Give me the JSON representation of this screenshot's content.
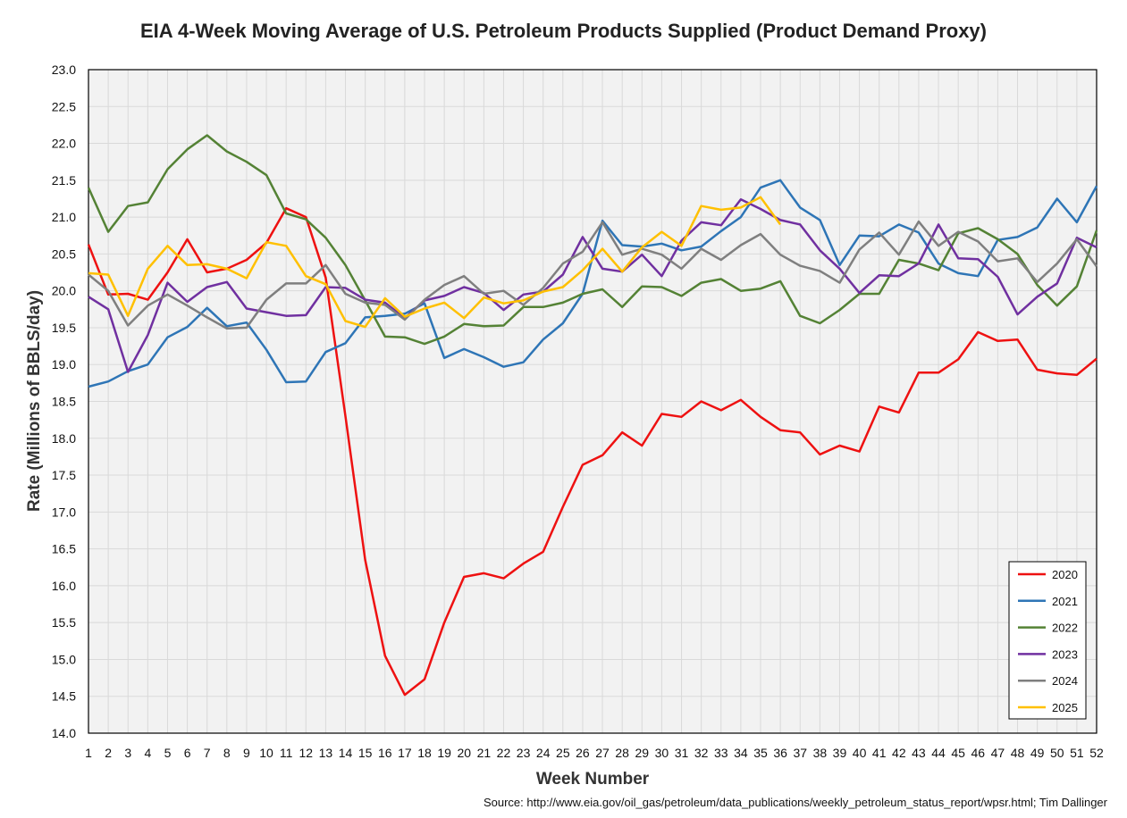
{
  "chart_data": {
    "type": "line",
    "title": "EIA 4-Week Moving Average of U.S. Petroleum Products Supplied (Product Demand Proxy)",
    "xlabel": "Week Number",
    "ylabel": "Rate (Millions of BBLS/day)",
    "source": "Source: http://www.eia.gov/oil_gas/petroleum/data_publications/weekly_petroleum_status_report/wpsr.html; Tim Dallinger",
    "xlim": [
      1,
      52
    ],
    "ylim": [
      14.0,
      23.0
    ],
    "yticks": [
      "14.0",
      "14.5",
      "15.0",
      "15.5",
      "16.0",
      "16.5",
      "17.0",
      "17.5",
      "18.0",
      "18.5",
      "19.0",
      "19.5",
      "20.0",
      "20.5",
      "21.0",
      "21.5",
      "22.0",
      "22.5",
      "23.0"
    ],
    "x": [
      1,
      2,
      3,
      4,
      5,
      6,
      7,
      8,
      9,
      10,
      11,
      12,
      13,
      14,
      15,
      16,
      17,
      18,
      19,
      20,
      21,
      22,
      23,
      24,
      25,
      26,
      27,
      28,
      29,
      30,
      31,
      32,
      33,
      34,
      35,
      36,
      37,
      38,
      39,
      40,
      41,
      42,
      43,
      44,
      45,
      46,
      47,
      48,
      49,
      50,
      51,
      52
    ],
    "grid": true,
    "legend_position": "bottom-right",
    "series": [
      {
        "name": "2020",
        "color": "#ee1111",
        "values": [
          20.63,
          19.95,
          19.96,
          19.88,
          20.25,
          20.7,
          20.25,
          20.3,
          20.42,
          20.65,
          21.12,
          21.0,
          20.18,
          18.3,
          16.35,
          15.05,
          14.52,
          14.73,
          15.5,
          16.12,
          16.17,
          16.1,
          16.3,
          16.46,
          17.07,
          17.64,
          17.77,
          18.08,
          17.9,
          18.33,
          18.29,
          18.5,
          18.38,
          18.52,
          18.29,
          18.11,
          18.08,
          17.78,
          17.9,
          17.82,
          18.43,
          18.35,
          18.89,
          18.89,
          19.07,
          19.44,
          19.32,
          19.34,
          18.93,
          18.88,
          18.86,
          19.08
        ]
      },
      {
        "name": "2021",
        "color": "#2e75b6",
        "values": [
          18.7,
          18.77,
          18.91,
          19.0,
          19.37,
          19.51,
          19.77,
          19.52,
          19.57,
          19.2,
          18.76,
          18.77,
          19.17,
          19.29,
          19.64,
          19.66,
          19.69,
          19.83,
          19.09,
          19.21,
          19.1,
          18.97,
          19.03,
          19.34,
          19.56,
          19.96,
          20.95,
          20.62,
          20.6,
          20.64,
          20.55,
          20.6,
          20.81,
          21.0,
          21.4,
          21.5,
          21.13,
          20.96,
          20.35,
          20.75,
          20.74,
          20.9,
          20.79,
          20.37,
          20.24,
          20.2,
          20.69,
          20.73,
          20.86,
          21.25,
          20.93,
          21.42
        ]
      },
      {
        "name": "2022",
        "color": "#548235",
        "values": [
          21.4,
          20.8,
          21.15,
          21.2,
          21.65,
          21.92,
          22.11,
          21.89,
          21.75,
          21.57,
          21.05,
          20.97,
          20.72,
          20.35,
          19.87,
          19.38,
          19.37,
          19.28,
          19.38,
          19.55,
          19.52,
          19.53,
          19.78,
          19.78,
          19.84,
          19.96,
          20.02,
          19.78,
          20.06,
          20.05,
          19.93,
          20.11,
          20.16,
          20.0,
          20.03,
          20.13,
          19.66,
          19.56,
          19.74,
          19.96,
          19.96,
          20.42,
          20.37,
          20.28,
          20.78,
          20.85,
          20.7,
          20.5,
          20.08,
          19.8,
          20.06,
          20.82
        ]
      },
      {
        "name": "2023",
        "color": "#7030a0",
        "values": [
          19.92,
          19.75,
          18.9,
          19.4,
          20.11,
          19.85,
          20.05,
          20.12,
          19.76,
          19.71,
          19.66,
          19.67,
          20.05,
          20.04,
          19.88,
          19.84,
          19.63,
          19.87,
          19.93,
          20.05,
          19.97,
          19.74,
          19.95,
          19.99,
          20.22,
          20.73,
          20.3,
          20.26,
          20.49,
          20.2,
          20.68,
          20.93,
          20.89,
          21.24,
          21.11,
          20.96,
          20.9,
          20.55,
          20.3,
          19.97,
          20.21,
          20.2,
          20.37,
          20.9,
          20.44,
          20.43,
          20.19,
          19.68,
          19.92,
          20.1,
          20.72,
          20.59
        ]
      },
      {
        "name": "2024",
        "color": "#7f7f7f",
        "values": [
          20.22,
          20.0,
          19.53,
          19.8,
          19.95,
          19.8,
          19.64,
          19.49,
          19.5,
          19.88,
          20.1,
          20.1,
          20.35,
          19.96,
          19.84,
          19.81,
          19.61,
          19.88,
          20.08,
          20.2,
          19.96,
          20.0,
          19.81,
          20.04,
          20.37,
          20.53,
          20.93,
          20.49,
          20.57,
          20.49,
          20.3,
          20.57,
          20.42,
          20.62,
          20.77,
          20.49,
          20.34,
          20.27,
          20.11,
          20.56,
          20.79,
          20.49,
          20.94,
          20.61,
          20.8,
          20.67,
          20.4,
          20.44,
          20.12,
          20.37,
          20.7,
          20.33
        ]
      },
      {
        "name": "2025",
        "color": "#ffc000",
        "values": [
          20.24,
          20.22,
          19.66,
          20.3,
          20.61,
          20.35,
          20.36,
          20.3,
          20.17,
          20.66,
          20.61,
          20.2,
          20.09,
          19.59,
          19.51,
          19.9,
          19.65,
          19.76,
          19.84,
          19.63,
          19.91,
          19.83,
          19.87,
          19.99,
          20.05,
          20.28,
          20.57,
          20.26,
          20.59,
          20.8,
          20.61,
          21.15,
          21.1,
          21.13,
          21.27,
          20.9,
          null,
          null,
          null,
          null,
          null,
          null,
          null,
          null,
          null,
          null,
          null,
          null,
          null,
          null,
          null,
          null
        ]
      }
    ]
  }
}
